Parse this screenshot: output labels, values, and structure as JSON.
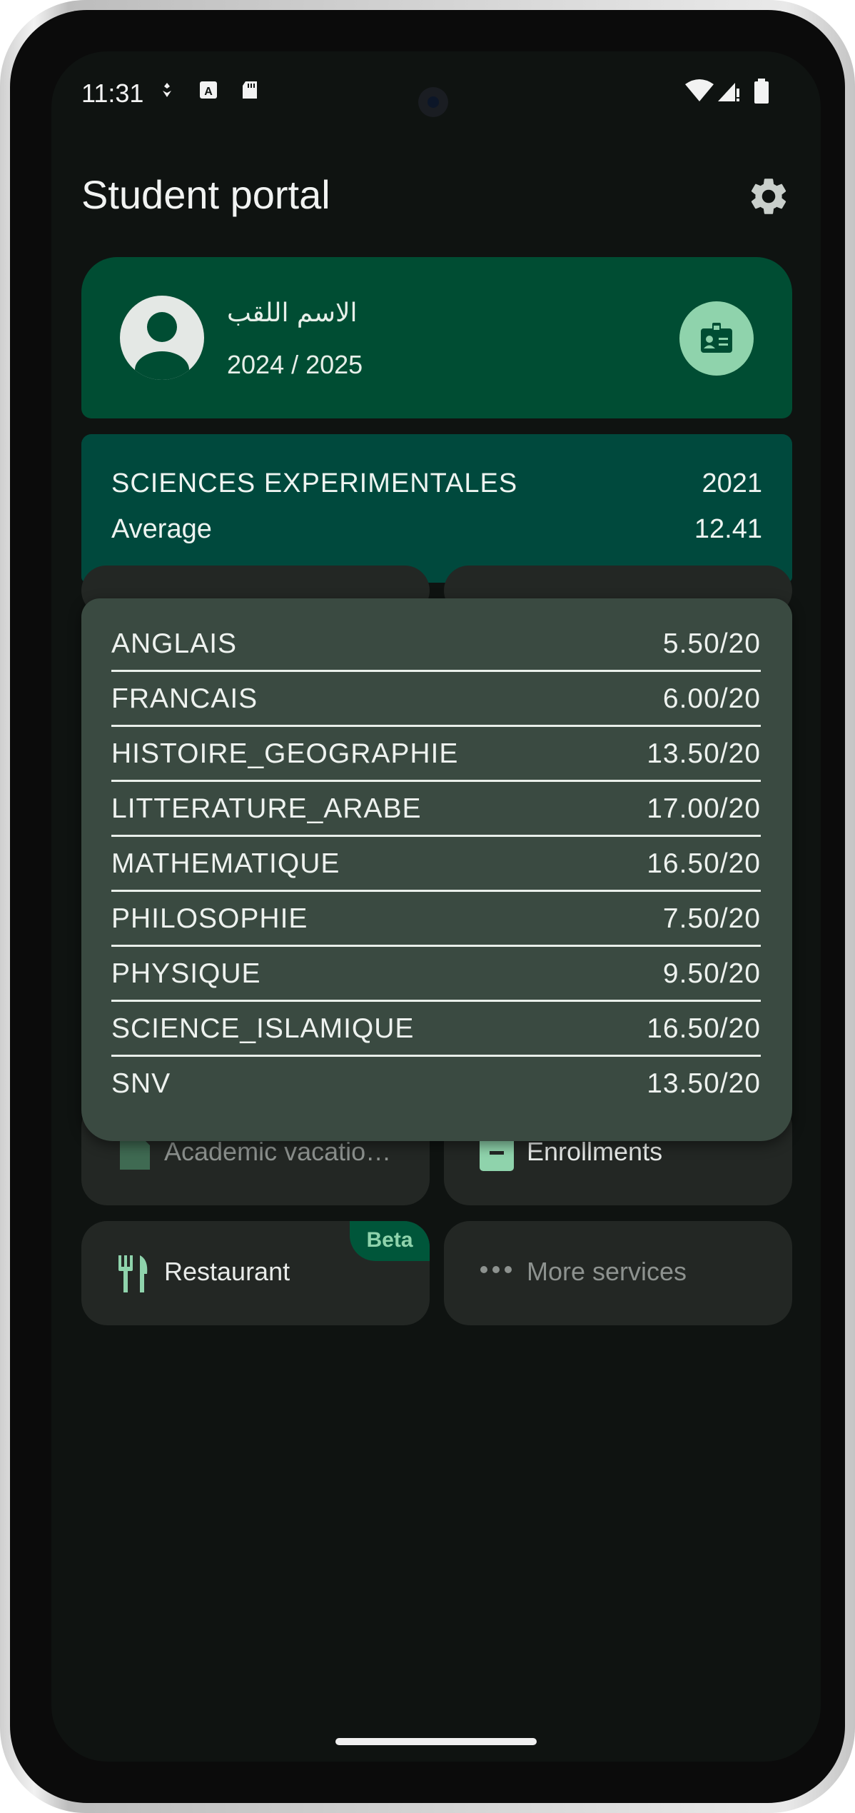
{
  "status_bar": {
    "time": "11:31",
    "icons": [
      "notification-icon",
      "a-badge-icon",
      "sd-card-icon",
      "wifi-icon",
      "signal-icon",
      "battery-icon"
    ]
  },
  "header": {
    "title": "Student portal",
    "settings_icon": "gear-icon"
  },
  "profile": {
    "name": "الاسم اللقب",
    "academic_year": "2024 / 2025",
    "avatar_icon": "account-circle-icon",
    "card_icon": "id-card-icon"
  },
  "bac": {
    "stream": "SCIENCES EXPERIMENTALES",
    "year": "2021",
    "average_label": "Average",
    "average_value": "12.41"
  },
  "grades": [
    {
      "subject": "ANGLAIS",
      "score": "5.50/20"
    },
    {
      "subject": "FRANCAIS",
      "score": "6.00/20"
    },
    {
      "subject": "HISTOIRE_GEOGRAPHIE",
      "score": "13.50/20"
    },
    {
      "subject": "LITTERATURE_ARABE",
      "score": "17.00/20"
    },
    {
      "subject": "MATHEMATIQUE",
      "score": "16.50/20"
    },
    {
      "subject": "PHILOSOPHIE",
      "score": "7.50/20"
    },
    {
      "subject": "PHYSIQUE",
      "score": "9.50/20"
    },
    {
      "subject": "SCIENCE_ISLAMIQUE",
      "score": "16.50/20"
    },
    {
      "subject": "SNV",
      "score": "13.50/20"
    }
  ],
  "services": {
    "academic_vacation": "Academic vacatio…",
    "enrollments": "Enrollments",
    "restaurant": "Restaurant",
    "restaurant_badge": "Beta",
    "more_services": "More services"
  },
  "colors": {
    "background": "#0f1311",
    "profile_card": "#004d33",
    "bac_card": "#00493d",
    "grades_panel": "#3a4a41",
    "accent": "#8fd3ac",
    "tile": "#232724"
  }
}
